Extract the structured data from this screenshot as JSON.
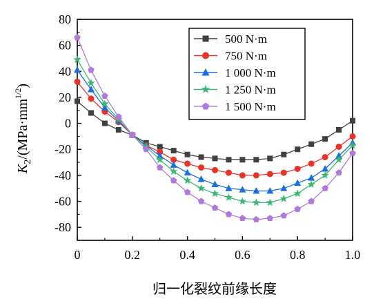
{
  "chart_data": {
    "type": "line",
    "xlabel": "归一化裂纹前缘长度",
    "ylabel_main": "K",
    "ylabel_sub": "2",
    "ylabel_rest": "/(MPa·mm",
    "ylabel_sup": "1/2",
    "ylabel_close": ")",
    "xlim": [
      0,
      1.0
    ],
    "ylim": [
      -90,
      80
    ],
    "xticks": [
      0,
      0.2,
      0.4,
      0.6,
      0.8,
      1.0
    ],
    "xtick_labels": [
      "0",
      "0.2",
      "0.4",
      "0.6",
      "0.8",
      "1.0"
    ],
    "yticks": [
      -80,
      -60,
      -40,
      -20,
      0,
      20,
      40,
      60,
      80
    ],
    "ytick_labels": [
      "-80",
      "-60",
      "-40",
      "-20",
      "0",
      "20",
      "40",
      "60",
      "80"
    ],
    "legend_position": "top-right",
    "grid": false,
    "x": [
      0,
      0.05,
      0.1,
      0.15,
      0.2,
      0.25,
      0.3,
      0.35,
      0.4,
      0.45,
      0.5,
      0.55,
      0.6,
      0.65,
      0.7,
      0.75,
      0.8,
      0.85,
      0.9,
      0.95,
      1.0
    ],
    "series": [
      {
        "name": "500 N·m",
        "color": "#404040",
        "marker": "square",
        "values": [
          17,
          8,
          0,
          -5,
          -9,
          -15,
          -18,
          -21,
          -24,
          -26,
          -27,
          -28,
          -28,
          -28,
          -27,
          -24,
          -20,
          -16,
          -12,
          -5,
          2
        ]
      },
      {
        "name": "750 N·m",
        "color": "#e8322a",
        "marker": "circle",
        "values": [
          32,
          19,
          9,
          1,
          -9,
          -17,
          -22,
          -28,
          -31,
          -34,
          -36,
          -38,
          -40,
          -40,
          -39,
          -38,
          -35,
          -31,
          -26,
          -18,
          -10
        ]
      },
      {
        "name": "1 000 N·m",
        "color": "#1a6ee0",
        "marker": "triangle",
        "values": [
          41,
          26,
          12,
          2,
          -9,
          -17,
          -25,
          -32,
          -38,
          -43,
          -47,
          -50,
          -51,
          -52,
          -52,
          -50,
          -46,
          -42,
          -35,
          -25,
          -15
        ]
      },
      {
        "name": "1 250 N·m",
        "color": "#3cb873",
        "marker": "star",
        "values": [
          49,
          31,
          15,
          3,
          -9,
          -18,
          -28,
          -37,
          -44,
          -50,
          -54,
          -57,
          -60,
          -61,
          -61,
          -58,
          -54,
          -47,
          -40,
          -28,
          -17
        ]
      },
      {
        "name": "1 500 N·m",
        "color": "#b07adb",
        "marker": "pentagon",
        "values": [
          66,
          41,
          21,
          5,
          -9,
          -20,
          -34,
          -44,
          -53,
          -60,
          -65,
          -70,
          -73,
          -74,
          -73,
          -71,
          -66,
          -60,
          -50,
          -38,
          -23
        ]
      }
    ]
  }
}
